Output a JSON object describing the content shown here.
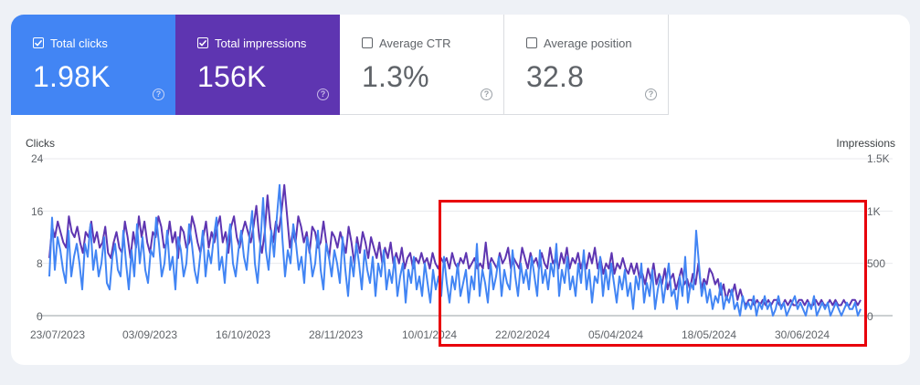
{
  "metrics": [
    {
      "label": "Total clicks",
      "value": "1.98K",
      "checked": true,
      "color": "#4285f4"
    },
    {
      "label": "Total impressions",
      "value": "156K",
      "checked": true,
      "color": "#5e35b1"
    },
    {
      "label": "Average CTR",
      "value": "1.3%",
      "checked": false
    },
    {
      "label": "Average position",
      "value": "32.8",
      "checked": false
    }
  ],
  "help_glyph": "?",
  "chart": {
    "left_axis_title": "Clicks",
    "right_axis_title": "Impressions",
    "left_ticks": [
      "24",
      "16",
      "8",
      "0"
    ],
    "right_ticks": [
      "1.5K",
      "1K",
      "500",
      "0"
    ],
    "x_ticks": [
      "23/07/2023",
      "03/09/2023",
      "16/10/2023",
      "28/11/2023",
      "10/01/2024",
      "22/02/2024",
      "05/04/2024",
      "18/05/2024",
      "30/06/2024"
    ]
  },
  "chart_data": {
    "type": "line",
    "title": "",
    "xlabel": "",
    "ylabel": "Clicks",
    "y2label": "Impressions",
    "ylim": [
      0,
      24
    ],
    "y2lim": [
      0,
      1500
    ],
    "x_start": "23/07/2023",
    "x_end": "31/07/2024",
    "series": [
      {
        "name": "Total clicks",
        "axis": "left",
        "color": "#4285f4",
        "values": [
          6,
          15,
          7,
          12,
          10,
          7,
          5,
          13,
          6,
          9,
          11,
          8,
          4,
          11,
          9,
          14,
          7,
          10,
          6,
          8,
          12,
          5,
          4,
          9,
          11,
          7,
          6,
          13,
          8,
          4,
          10,
          6,
          14,
          8,
          12,
          7,
          5,
          10,
          9,
          15,
          11,
          6,
          8,
          13,
          7,
          9,
          4,
          12,
          10,
          6,
          8,
          14,
          11,
          7,
          5,
          9,
          13,
          6,
          10,
          8,
          12,
          15,
          7,
          9,
          5,
          11,
          14,
          8,
          6,
          10,
          13,
          9,
          7,
          12,
          16,
          8,
          5,
          11,
          18,
          10,
          7,
          13,
          9,
          15,
          20,
          12,
          6,
          10,
          8,
          14,
          11,
          7,
          9,
          5,
          12,
          10,
          6,
          8,
          13,
          7,
          4,
          11,
          9,
          6,
          10,
          8,
          5,
          12,
          7,
          3,
          9,
          6,
          11,
          8,
          4,
          10,
          7,
          5,
          9,
          3,
          8,
          6,
          10,
          4,
          7,
          5,
          9,
          3,
          6,
          8,
          2,
          7,
          5,
          9,
          4,
          6,
          3,
          8,
          5,
          2,
          7,
          4,
          6,
          3,
          9,
          5,
          2,
          6,
          4,
          8,
          3,
          5,
          7,
          2,
          6,
          4,
          11,
          3,
          7,
          5,
          2,
          8,
          4,
          6,
          9,
          3,
          7,
          5,
          4,
          10,
          6,
          3,
          8,
          5,
          7,
          4,
          9,
          6,
          3,
          10,
          5,
          7,
          4,
          8,
          6,
          11,
          3,
          7,
          5,
          9,
          4,
          6,
          3,
          8,
          5,
          10,
          4,
          7,
          2,
          6,
          5,
          9,
          3,
          7,
          4,
          8,
          5,
          2,
          6,
          4,
          7,
          3,
          5,
          1,
          6,
          4,
          8,
          2,
          5,
          3,
          7,
          1,
          4,
          6,
          2,
          5,
          8,
          3,
          4,
          1,
          6,
          3,
          9,
          2,
          5,
          4,
          13,
          8,
          3,
          5,
          2,
          4,
          1,
          3,
          2,
          5,
          1,
          3,
          2,
          4,
          1,
          2,
          0,
          3,
          1,
          2,
          1,
          3,
          0,
          2,
          1,
          3,
          1,
          2,
          0,
          1,
          3,
          1,
          2,
          0,
          1,
          2,
          3,
          1,
          2,
          1,
          0,
          2,
          1,
          3,
          0,
          1,
          2,
          1,
          2,
          0,
          1,
          2,
          1,
          0,
          1,
          2,
          1,
          1,
          2,
          0,
          1
        ]
      },
      {
        "name": "Total impressions",
        "axis": "right",
        "color": "#5e35b1",
        "values": [
          550,
          850,
          750,
          900,
          800,
          700,
          650,
          950,
          800,
          750,
          850,
          700,
          600,
          800,
          750,
          900,
          700,
          800,
          650,
          700,
          850,
          600,
          550,
          700,
          800,
          650,
          600,
          900,
          750,
          550,
          800,
          650,
          950,
          750,
          900,
          700,
          600,
          800,
          750,
          950,
          850,
          650,
          700,
          900,
          700,
          800,
          550,
          850,
          800,
          650,
          700,
          950,
          850,
          700,
          600,
          750,
          900,
          650,
          800,
          700,
          850,
          950,
          700,
          800,
          600,
          850,
          950,
          750,
          650,
          800,
          900,
          800,
          700,
          850,
          1050,
          750,
          600,
          800,
          1150,
          850,
          700,
          900,
          800,
          1000,
          1250,
          950,
          650,
          800,
          700,
          950,
          850,
          700,
          800,
          600,
          850,
          800,
          650,
          700,
          900,
          700,
          550,
          800,
          750,
          650,
          800,
          700,
          600,
          850,
          700,
          500,
          750,
          600,
          800,
          700,
          550,
          750,
          650,
          550,
          700,
          500,
          650,
          550,
          700,
          500,
          600,
          500,
          650,
          450,
          550,
          600,
          450,
          550,
          500,
          600,
          500,
          550,
          450,
          600,
          500,
          450,
          550,
          500,
          550,
          450,
          600,
          500,
          450,
          550,
          500,
          600,
          450,
          500,
          550,
          450,
          500,
          450,
          700,
          450,
          550,
          500,
          450,
          600,
          500,
          550,
          650,
          450,
          550,
          500,
          450,
          650,
          550,
          450,
          600,
          500,
          550,
          450,
          600,
          500,
          450,
          650,
          500,
          550,
          450,
          600,
          500,
          650,
          450,
          550,
          500,
          600,
          450,
          550,
          450,
          600,
          500,
          650,
          450,
          550,
          400,
          500,
          450,
          600,
          400,
          500,
          450,
          550,
          450,
          400,
          500,
          400,
          500,
          350,
          400,
          300,
          450,
          350,
          500,
          300,
          400,
          300,
          450,
          250,
          350,
          400,
          250,
          350,
          450,
          300,
          350,
          250,
          400,
          300,
          500,
          250,
          350,
          300,
          450,
          400,
          300,
          350,
          200,
          300,
          150,
          250,
          200,
          300,
          150,
          250,
          150,
          100,
          150,
          150,
          100,
          150,
          100,
          150,
          100,
          150,
          100,
          150,
          150,
          100,
          100,
          150,
          100,
          150,
          100,
          100,
          150,
          150,
          100,
          150,
          100,
          100,
          150,
          100,
          150,
          100,
          100,
          150,
          100,
          150,
          100,
          100,
          150,
          100,
          100,
          150,
          150,
          100,
          150
        ]
      }
    ]
  }
}
